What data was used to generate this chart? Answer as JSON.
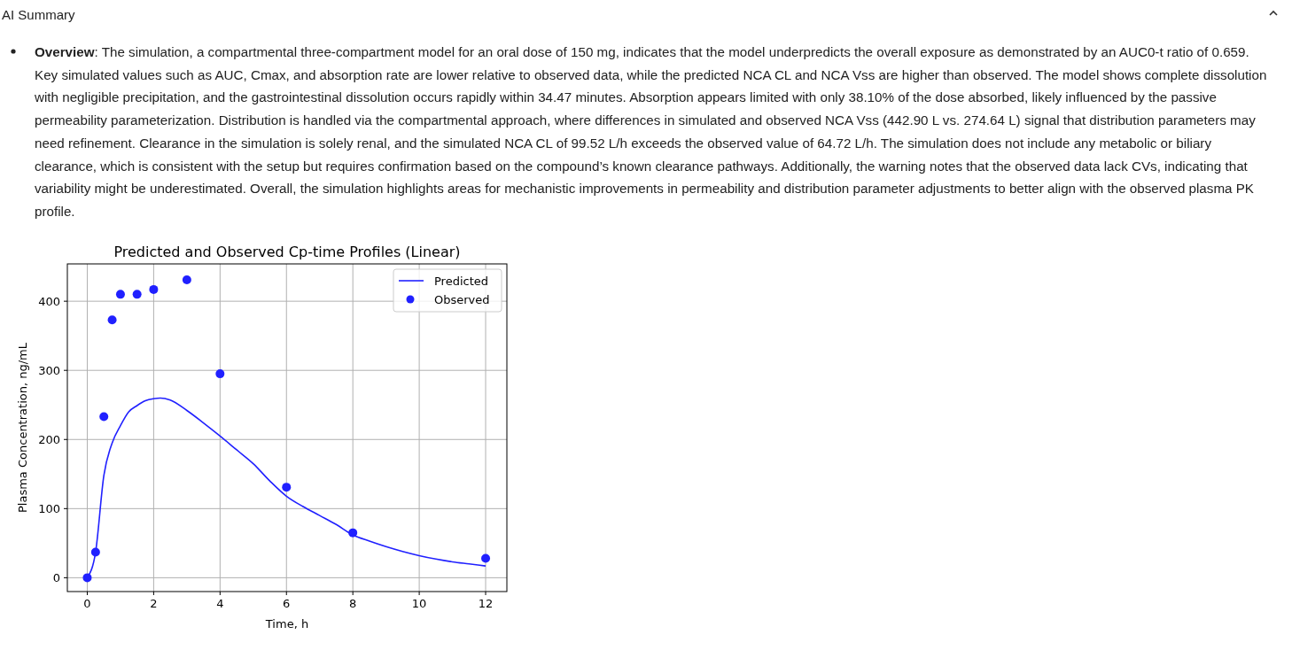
{
  "chart_data": {
    "type": "line",
    "title": "Predicted and Observed Cp-time Profiles (Linear)",
    "xlabel": "Time, h",
    "ylabel": "Plasma Concentration, ng/mL",
    "annotations": [
      "AI Summary",
      "Overview: The simulation, a compartmental three-compartment model for an oral dose of 150 mg, indicates that the model underpredicts the overall exposure as demonstrated by an AUC0-t ratio of 0.659. Key simulated values such as AUC, Cmax, and absorption rate are lower relative to observed data, while the predicted NCA CL and NCA Vss are higher than observed. The model shows complete dissolution with negligible precipitation, and the gastrointestinal dissolution occurs rapidly within 34.47 minutes. Absorption appears limited with only 38.10% of the dose absorbed, likely influenced by the passive permeability parameterization. Distribution is handled via the compartmental approach, where differences in simulated and observed NCA Vss (442.90 L vs. 274.64 L) signal that distribution parameters may need refinement. Clearance in the simulation is solely renal, and the simulated NCA CL of 99.52 L/h exceeds the observed value of 64.72 L/h. The simulation does not include any metabolic or biliary clearance, which is consistent with the setup but requires confirmation based on the compound’s known clearance pathways. Additionally, the warning notes that the observed data lack CVs, indicating that variability might be underestimated. Overall, the simulation highlights areas for mechanistic improvements in permeability and distribution parameter adjustments to better align with the observed plasma PK profile."
    ],
    "series": [
      {
        "name": "Predicted",
        "type": "line",
        "color": "#2020ff",
        "x": [
          0,
          0.25,
          0.5,
          0.75,
          1,
          1.25,
          1.5,
          1.75,
          2,
          2.2,
          2.5,
          3,
          3.5,
          4,
          4.5,
          5,
          5.5,
          6,
          6.5,
          7,
          7.5,
          8,
          8.5,
          9,
          9.5,
          10,
          10.5,
          11,
          11.5,
          12
        ],
        "values": [
          0,
          37,
          148,
          195,
          220,
          240,
          249,
          256,
          259,
          260,
          257,
          242,
          224,
          205,
          185,
          165,
          140,
          118,
          103,
          90,
          77,
          62,
          53,
          45,
          38,
          32,
          27,
          23,
          20,
          17
        ]
      },
      {
        "name": "Observed",
        "type": "scatter",
        "color": "#2020ff",
        "marker": "circle",
        "x": [
          0,
          0.25,
          0.5,
          0.75,
          1,
          1.5,
          2,
          3,
          4,
          6,
          8,
          12
        ],
        "values": [
          0,
          37,
          233,
          373,
          410,
          410,
          417,
          431,
          295,
          131,
          65,
          28
        ]
      }
    ],
    "xlim": [
      -0.6,
      12.64
    ],
    "ylim": [
      -20,
      454
    ],
    "xticks": [
      0,
      2,
      4,
      6,
      8,
      10,
      12
    ],
    "yticks": [
      0,
      100,
      200,
      300,
      400
    ],
    "grid": true,
    "legend": "top right"
  }
}
